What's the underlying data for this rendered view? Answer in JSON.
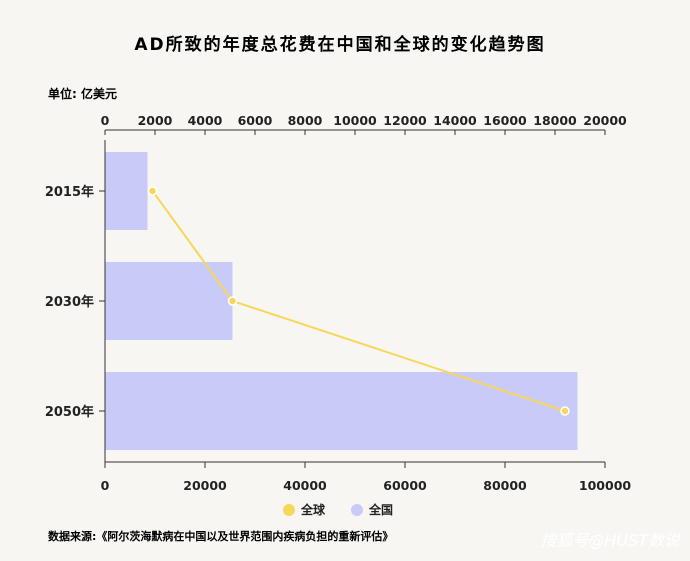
{
  "chart_data": {
    "type": "bar",
    "title": "AD所致的年度总花费在中国和全球的变化趋势图",
    "unit_label": "单位: 亿美元",
    "categories": [
      "2015年",
      "2030年",
      "2050年"
    ],
    "series": [
      {
        "name": "全国",
        "type": "bar",
        "axis": "bottom",
        "color": "#c8caf8",
        "values": [
          8500,
          25500,
          94500
        ]
      },
      {
        "name": "全球",
        "type": "line",
        "axis": "top",
        "color": "#f7d75a",
        "values": [
          1900,
          5100,
          18400
        ]
      }
    ],
    "top_axis": {
      "ticks": [
        "0",
        "2000",
        "4000",
        "6000",
        "8000",
        "10000",
        "12000",
        "14000",
        "16000",
        "18000",
        "20000"
      ],
      "range": [
        0,
        20000
      ]
    },
    "bottom_axis": {
      "ticks": [
        "0",
        "20000",
        "40000",
        "60000",
        "80000",
        "100000"
      ],
      "range": [
        0,
        100000
      ]
    },
    "legend_position": "bottom"
  },
  "source_text": "数据来源:《阿尔茨海默病在中国以及世界范围内疾病负担的重新评估》",
  "watermark_text": "搜狐号@HUST数说"
}
